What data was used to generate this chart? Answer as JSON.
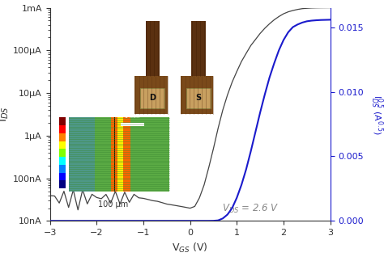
{
  "title": "",
  "xlabel": "V$_{GS}$ (V)",
  "ylabel_left": "I$_{DS}$",
  "ylabel_right": "I$^{0.5}_{DS}$ (A$^{0.5}$)",
  "xlim": [
    -3,
    3
  ],
  "ylim_log": [
    1e-08,
    0.001
  ],
  "ylim_linear": [
    0.0,
    0.0165
  ],
  "yticks_log": [
    1e-08,
    1e-07,
    1e-06,
    1e-05,
    0.0001,
    0.001
  ],
  "yticklabels_log": [
    "10nA",
    "100nA",
    "1μA",
    "10μA",
    "100μA",
    "1mA"
  ],
  "yticks_linear": [
    0.0,
    0.005,
    0.01,
    0.015
  ],
  "yticklabels_linear": [
    "0.000",
    "0.005",
    "0.010",
    "0.015"
  ],
  "xticks": [
    -3,
    -2,
    -1,
    0,
    1,
    2,
    3
  ],
  "vds_label": "V$_{DS}$ = 2.6 V",
  "line_color_log": "#444444",
  "line_color_linear": "#1a1acc",
  "axis_color_left": "#333333",
  "axis_color_right": "#1a1acc",
  "background_color": "#ffffff",
  "vgs_data": [
    -3.0,
    -2.9,
    -2.8,
    -2.7,
    -2.6,
    -2.5,
    -2.4,
    -2.3,
    -2.2,
    -2.1,
    -2.0,
    -1.9,
    -1.8,
    -1.7,
    -1.6,
    -1.5,
    -1.4,
    -1.3,
    -1.2,
    -1.1,
    -1.0,
    -0.9,
    -0.8,
    -0.7,
    -0.6,
    -0.5,
    -0.4,
    -0.3,
    -0.2,
    -0.1,
    0.0,
    0.1,
    0.2,
    0.3,
    0.4,
    0.5,
    0.6,
    0.7,
    0.8,
    0.9,
    1.0,
    1.1,
    1.2,
    1.3,
    1.4,
    1.5,
    1.6,
    1.7,
    1.8,
    1.9,
    2.0,
    2.1,
    2.2,
    2.3,
    2.4,
    2.5,
    2.6,
    2.7,
    2.8,
    2.9,
    3.0
  ],
  "ids_log_data": [
    3.5e-08,
    3.8e-08,
    3.2e-08,
    4e-08,
    3.4e-08,
    3.9e-08,
    3.3e-08,
    4.1e-08,
    3.5e-08,
    3.7e-08,
    3.6e-08,
    3.8e-08,
    3.3e-08,
    3.9e-08,
    3.5e-08,
    4e-08,
    3.4e-08,
    3.8e-08,
    3.6e-08,
    3.5e-08,
    3.4e-08,
    3.2e-08,
    3e-08,
    2.9e-08,
    2.7e-08,
    2.5e-08,
    2.4e-08,
    2.3e-08,
    2.2e-08,
    2.1e-08,
    2e-08,
    2.2e-08,
    3.5e-08,
    7e-08,
    1.8e-07,
    5e-07,
    1.5e-06,
    4e-06,
    9e-06,
    1.8e-05,
    3.2e-05,
    5.5e-05,
    8.5e-05,
    0.00013,
    0.00018,
    0.00025,
    0.00033,
    0.00042,
    0.00052,
    0.00062,
    0.00072,
    0.0008,
    0.00086,
    0.00091,
    0.00095,
    0.00097,
    0.000985,
    0.000992,
    0.000996,
    0.000998,
    0.001
  ],
  "ids_sqrt_data": [
    1.5e-05,
    1.5e-05,
    1.5e-05,
    1.5e-05,
    1.5e-05,
    1.5e-05,
    1.5e-05,
    1.5e-05,
    1.5e-05,
    1.5e-05,
    1.5e-05,
    1.5e-05,
    1.5e-05,
    1.5e-05,
    1.5e-05,
    1.5e-05,
    1.5e-05,
    1.5e-05,
    1.5e-05,
    1.5e-05,
    1.5e-05,
    1.5e-05,
    1.5e-05,
    1.5e-05,
    1.5e-05,
    1.5e-05,
    1.5e-05,
    1.5e-05,
    1.5e-05,
    1.5e-05,
    1.5e-05,
    1.5e-05,
    1.5e-05,
    1.5e-05,
    1.5e-05,
    2e-05,
    5e-05,
    0.0002,
    0.0005,
    0.001,
    0.0018,
    0.0028,
    0.004,
    0.0054,
    0.0069,
    0.0084,
    0.0098,
    0.0111,
    0.0122,
    0.0132,
    0.014,
    0.0146,
    0.015,
    0.0152,
    0.01535,
    0.01545,
    0.0155,
    0.01553,
    0.01555,
    0.01556,
    0.01557
  ]
}
